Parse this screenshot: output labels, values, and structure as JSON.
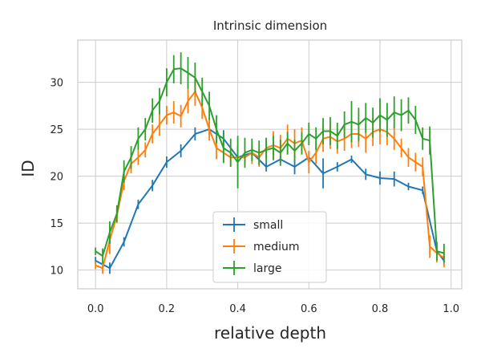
{
  "chart_data": {
    "type": "line",
    "title": "Intrinsic dimension",
    "xlabel": "relative depth",
    "ylabel": "ID",
    "xlim": [
      -0.05,
      1.03
    ],
    "ylim": [
      8,
      34.5
    ],
    "xticks": [
      0.0,
      0.2,
      0.4,
      0.6,
      0.8,
      1.0
    ],
    "xtick_labels": [
      "0.0",
      "0.2",
      "0.4",
      "0.6",
      "0.8",
      "1.0"
    ],
    "yticks": [
      10,
      15,
      20,
      25,
      30
    ],
    "ytick_labels": [
      "10",
      "15",
      "20",
      "25",
      "30"
    ],
    "grid": true,
    "legend_position": "bottom-center",
    "error_bars": true,
    "series": [
      {
        "name": "small",
        "color": "#1f77b4",
        "x": [
          0.0,
          0.04,
          0.08,
          0.12,
          0.16,
          0.2,
          0.24,
          0.28,
          0.32,
          0.36,
          0.4,
          0.44,
          0.48,
          0.52,
          0.56,
          0.6,
          0.64,
          0.68,
          0.72,
          0.76,
          0.8,
          0.84,
          0.88,
          0.92,
          0.96,
          0.98
        ],
        "y": [
          11.0,
          10.2,
          13.0,
          17.0,
          19.0,
          21.5,
          22.7,
          24.5,
          25.0,
          24.0,
          22.0,
          22.5,
          21.0,
          21.8,
          21.0,
          22.0,
          20.3,
          21.0,
          21.8,
          20.2,
          19.8,
          19.7,
          18.9,
          18.5,
          12.0,
          11.0
        ],
        "err": [
          0.4,
          0.6,
          0.5,
          0.5,
          0.6,
          0.6,
          0.7,
          0.7,
          0.6,
          0.9,
          1.2,
          0.7,
          0.5,
          0.4,
          0.8,
          0.6,
          1.6,
          0.5,
          0.4,
          0.6,
          0.7,
          0.8,
          0.4,
          0.4,
          0.4,
          0.5
        ]
      },
      {
        "name": "medium",
        "color": "#ff7f0e",
        "x": [
          0.0,
          0.02,
          0.04,
          0.06,
          0.08,
          0.1,
          0.12,
          0.14,
          0.16,
          0.18,
          0.2,
          0.22,
          0.24,
          0.26,
          0.28,
          0.3,
          0.32,
          0.34,
          0.36,
          0.38,
          0.4,
          0.42,
          0.44,
          0.46,
          0.48,
          0.5,
          0.52,
          0.54,
          0.56,
          0.58,
          0.6,
          0.62,
          0.64,
          0.66,
          0.68,
          0.7,
          0.72,
          0.74,
          0.76,
          0.78,
          0.8,
          0.82,
          0.84,
          0.86,
          0.88,
          0.9,
          0.92,
          0.94,
          0.96,
          0.98
        ],
        "y": [
          10.5,
          10.2,
          13.2,
          15.8,
          19.5,
          21.3,
          22.0,
          22.8,
          24.5,
          25.5,
          26.5,
          26.8,
          26.4,
          28.0,
          29.0,
          27.3,
          25.0,
          23.0,
          22.5,
          22.0,
          22.0,
          22.0,
          22.5,
          22.0,
          23.0,
          23.3,
          23.0,
          24.0,
          23.5,
          23.8,
          21.5,
          22.5,
          24.0,
          24.2,
          23.7,
          24.0,
          24.5,
          24.5,
          24.0,
          24.7,
          25.0,
          24.7,
          24.0,
          23.0,
          22.0,
          21.5,
          21.0,
          12.5,
          11.8,
          11.3
        ],
        "err": [
          0.4,
          0.6,
          1.5,
          0.8,
          1.0,
          1.0,
          0.8,
          0.8,
          1.0,
          1.2,
          1.0,
          1.2,
          1.2,
          1.3,
          1.5,
          1.2,
          1.2,
          1.2,
          1.0,
          1.0,
          1.0,
          0.8,
          1.2,
          1.0,
          1.0,
          1.5,
          1.4,
          1.5,
          1.5,
          1.4,
          1.2,
          1.2,
          1.4,
          1.3,
          1.3,
          1.3,
          1.5,
          1.4,
          1.5,
          1.5,
          1.6,
          1.4,
          1.2,
          1.0,
          1.0,
          1.0,
          1.0,
          1.2,
          1.0,
          1.0
        ]
      },
      {
        "name": "large",
        "color": "#2ca02c",
        "x": [
          0.0,
          0.02,
          0.04,
          0.06,
          0.08,
          0.1,
          0.12,
          0.14,
          0.16,
          0.18,
          0.2,
          0.22,
          0.24,
          0.26,
          0.28,
          0.3,
          0.32,
          0.34,
          0.36,
          0.38,
          0.4,
          0.42,
          0.44,
          0.46,
          0.48,
          0.5,
          0.52,
          0.54,
          0.56,
          0.58,
          0.6,
          0.62,
          0.64,
          0.66,
          0.68,
          0.7,
          0.72,
          0.74,
          0.76,
          0.78,
          0.8,
          0.82,
          0.84,
          0.86,
          0.88,
          0.9,
          0.92,
          0.94,
          0.96,
          0.98
        ],
        "y": [
          12.0,
          11.5,
          14.0,
          16.0,
          20.5,
          22.0,
          24.0,
          25.0,
          27.0,
          28.0,
          30.0,
          31.4,
          31.5,
          31.0,
          30.5,
          29.0,
          27.5,
          25.0,
          23.0,
          22.5,
          21.5,
          22.5,
          22.8,
          22.5,
          22.8,
          23.0,
          22.5,
          23.5,
          22.7,
          23.5,
          24.5,
          24.0,
          24.8,
          24.8,
          24.3,
          25.5,
          25.8,
          25.5,
          26.2,
          25.7,
          26.5,
          26.0,
          26.8,
          26.5,
          27.0,
          26.0,
          24.0,
          23.8,
          12.0,
          11.8
        ],
        "err": [
          0.4,
          0.8,
          1.2,
          0.9,
          1.2,
          1.2,
          1.2,
          1.2,
          1.3,
          1.4,
          1.5,
          1.5,
          1.7,
          1.7,
          1.6,
          1.5,
          1.5,
          1.5,
          1.6,
          1.5,
          2.8,
          1.6,
          1.2,
          1.3,
          1.3,
          1.3,
          1.4,
          1.2,
          1.2,
          1.2,
          1.2,
          1.2,
          1.4,
          1.5,
          1.4,
          1.4,
          2.2,
          1.8,
          1.6,
          1.6,
          1.8,
          1.8,
          1.7,
          1.7,
          1.4,
          1.5,
          1.2,
          1.5,
          1.0,
          1.0
        ]
      }
    ]
  }
}
